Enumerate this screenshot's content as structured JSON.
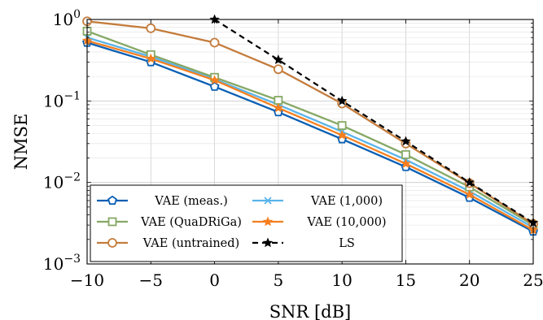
{
  "chart_data": {
    "type": "line",
    "xlabel": "SNR [dB]",
    "ylabel": "NMSE",
    "x": [
      -10,
      -5,
      0,
      5,
      10,
      15,
      20,
      25
    ],
    "xlim": [
      -10,
      25
    ],
    "ylim": [
      0.001,
      1
    ],
    "y_scale": "log",
    "x_ticks": [
      -10,
      -5,
      0,
      5,
      10,
      15,
      20,
      25
    ],
    "x_tick_labels": [
      "−10",
      "−5",
      "0",
      "5",
      "10",
      "15",
      "20",
      "25"
    ],
    "y_ticks": [
      {
        "value": 0.001,
        "base": "10",
        "exp": "−3"
      },
      {
        "value": 0.01,
        "base": "10",
        "exp": "−2"
      },
      {
        "value": 0.1,
        "base": "10",
        "exp": "−1"
      },
      {
        "value": 1,
        "base": "10",
        "exp": "0"
      }
    ],
    "grid": true,
    "legend_position": "bottom-left",
    "series": [
      {
        "name": "VAE (meas.)",
        "color": "#0a5fb4",
        "marker": "pentagon",
        "dash": "solid",
        "values": [
          0.52,
          0.3,
          0.15,
          0.073,
          0.034,
          0.0155,
          0.0065,
          0.0025
        ]
      },
      {
        "name": "VAE (1,000)",
        "color": "#5ab4ea",
        "marker": "x",
        "dash": "solid",
        "values": [
          0.6,
          0.35,
          0.185,
          0.09,
          0.042,
          0.019,
          0.0078,
          0.0028
        ]
      },
      {
        "name": "VAE (QuaDRiGa)",
        "color": "#86a865",
        "marker": "square",
        "dash": "solid",
        "values": [
          0.72,
          0.37,
          0.195,
          0.102,
          0.05,
          0.022,
          0.0088,
          0.003
        ]
      },
      {
        "name": "VAE (10,000)",
        "color": "#f57f1f",
        "marker": "star",
        "dash": "solid",
        "values": [
          0.55,
          0.33,
          0.18,
          0.082,
          0.038,
          0.017,
          0.0071,
          0.0026
        ]
      },
      {
        "name": "VAE (untrained)",
        "color": "#c47c3c",
        "marker": "circle",
        "dash": "solid",
        "values": [
          0.95,
          0.78,
          0.52,
          0.245,
          0.093,
          0.03,
          0.0098,
          0.0031
        ]
      },
      {
        "name": "LS",
        "color": "#000000",
        "marker": "star",
        "dash": "dashed",
        "x": [
          0,
          5,
          10,
          15,
          20,
          25
        ],
        "values": [
          1.0,
          0.32,
          0.1,
          0.032,
          0.01,
          0.0032
        ]
      }
    ]
  }
}
